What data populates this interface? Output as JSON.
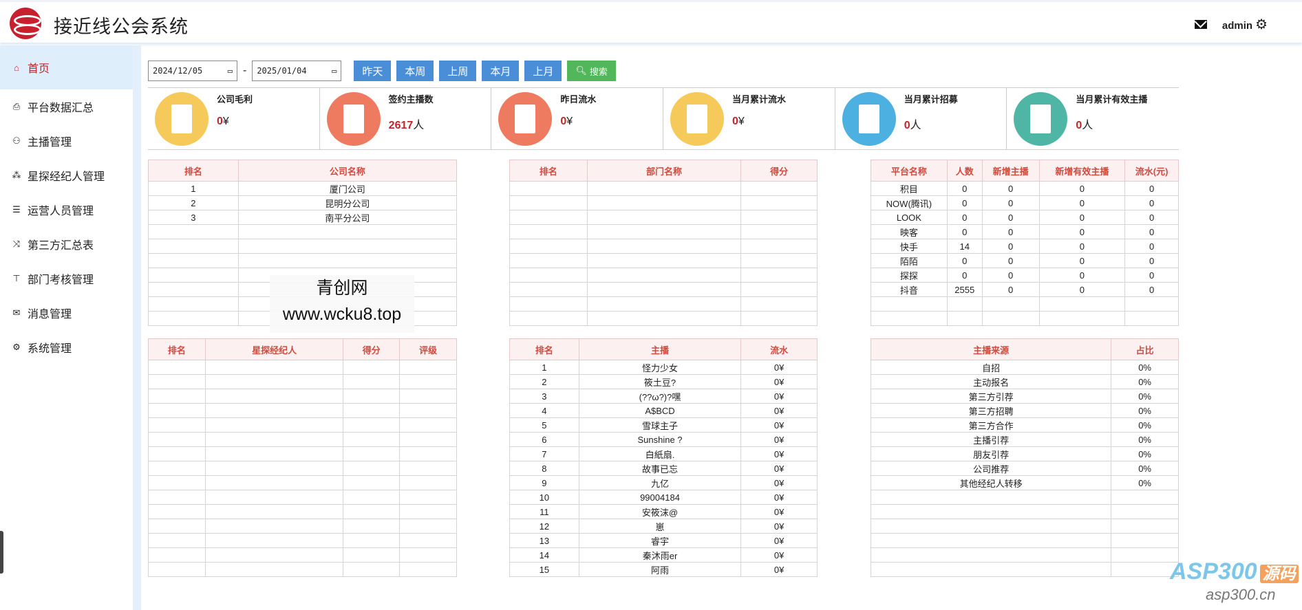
{
  "header": {
    "title": "接近线公会系统",
    "user": "admin",
    "icons": {
      "logo": "logo-icon",
      "mail": "mail-icon",
      "settings": "gear-icon"
    }
  },
  "sidebar": {
    "items": [
      {
        "label": "首页",
        "icon": "home-icon",
        "glyph": "⌂",
        "active": true
      },
      {
        "label": "平台数据汇总",
        "icon": "inbox-icon",
        "glyph": "⎙"
      },
      {
        "label": "主播管理",
        "icon": "users-icon",
        "glyph": "⚇"
      },
      {
        "label": "星探经纪人管理",
        "icon": "sitemap-icon",
        "glyph": "⁂"
      },
      {
        "label": "运营人员管理",
        "icon": "list-icon",
        "glyph": "☰"
      },
      {
        "label": "第三方汇总表",
        "icon": "shuffle-icon",
        "glyph": "⤨"
      },
      {
        "label": "部门考核管理",
        "icon": "tree-icon",
        "glyph": "⊤"
      },
      {
        "label": "消息管理",
        "icon": "mail-icon",
        "glyph": "✉"
      },
      {
        "label": "系统管理",
        "icon": "gear-icon",
        "glyph": "⚙"
      }
    ]
  },
  "filter": {
    "start_date": "2024/12/05",
    "end_date": "2025/01/04",
    "separator": "-",
    "buttons": [
      "昨天",
      "本周",
      "上周",
      "本月",
      "上月"
    ],
    "search": "搜索"
  },
  "cards": [
    {
      "title": "公司毛利",
      "value": "0",
      "unit": "¥",
      "color": "#f6c95b",
      "icon": "report-search-icon"
    },
    {
      "title": "签约主播数",
      "value": "2617",
      "unit": "人",
      "color": "#ee7b5f",
      "icon": "pie-chart-icon"
    },
    {
      "title": "昨日流水",
      "value": "0",
      "unit": "¥",
      "color": "#ee7b5f",
      "icon": "bar-chart-icon"
    },
    {
      "title": "当月累计流水",
      "value": "0",
      "unit": "¥",
      "color": "#f6c95b",
      "icon": "refresh-doc-icon"
    },
    {
      "title": "当月累计招募",
      "value": "0",
      "unit": "人",
      "color": "#4cb1e0",
      "icon": "clock-doc-icon"
    },
    {
      "title": "当月累计有效主播",
      "value": "0",
      "unit": "人",
      "color": "#4fb6a6",
      "icon": "tablet-trend-icon"
    }
  ],
  "tables": {
    "company": {
      "headers": [
        "排名",
        "公司名称"
      ],
      "rows": [
        [
          "1",
          "厦门公司"
        ],
        [
          "2",
          "昆明分公司"
        ],
        [
          "3",
          "南平分公司"
        ]
      ],
      "total_rows": 10
    },
    "department": {
      "headers": [
        "排名",
        "部门名称",
        "得分"
      ],
      "rows": [],
      "total_rows": 10
    },
    "platform": {
      "headers": [
        "平台名称",
        "人数",
        "新增主播",
        "新增有效主播",
        "流水(元)"
      ],
      "rows": [
        [
          "积目",
          "0",
          "0",
          "0",
          "0"
        ],
        [
          "NOW(腾讯)",
          "0",
          "0",
          "0",
          "0"
        ],
        [
          "LOOK",
          "0",
          "0",
          "0",
          "0"
        ],
        [
          "映客",
          "0",
          "0",
          "0",
          "0"
        ],
        [
          "快手",
          "14",
          "0",
          "0",
          "0"
        ],
        [
          "陌陌",
          "0",
          "0",
          "0",
          "0"
        ],
        [
          "探探",
          "0",
          "0",
          "0",
          "0"
        ],
        [
          "抖音",
          "2555",
          "0",
          "0",
          "0"
        ]
      ],
      "total_rows": 10
    },
    "scout": {
      "headers": [
        "排名",
        "星探经纪人",
        "得分",
        "评级"
      ],
      "rows": [],
      "total_rows": 15
    },
    "streamer": {
      "headers": [
        "排名",
        "主播",
        "流水"
      ],
      "rows": [
        [
          "1",
          "怪力少女",
          "0¥"
        ],
        [
          "2",
          "筱土豆?",
          "0¥"
        ],
        [
          "3",
          "(??ω?)?嘿",
          "0¥"
        ],
        [
          "4",
          "A$BCD",
          "0¥"
        ],
        [
          "5",
          "雪球主子",
          "0¥"
        ],
        [
          "6",
          "Sunshine ?",
          "0¥"
        ],
        [
          "7",
          "白紙扇.",
          "0¥"
        ],
        [
          "8",
          "故事已忘",
          "0¥"
        ],
        [
          "9",
          "九亿",
          "0¥"
        ],
        [
          "10",
          "99004184",
          "0¥"
        ],
        [
          "11",
          "安筱沫@",
          "0¥"
        ],
        [
          "12",
          "崽",
          "0¥"
        ],
        [
          "13",
          "睿宇",
          "0¥"
        ],
        [
          "14",
          "秦沐雨er",
          "0¥"
        ],
        [
          "15",
          "阿雨",
          "0¥"
        ]
      ],
      "total_rows": 15
    },
    "source": {
      "headers": [
        "主播来源",
        "占比"
      ],
      "rows": [
        [
          "自招",
          "0%"
        ],
        [
          "主动报名",
          "0%"
        ],
        [
          "第三方引荐",
          "0%"
        ],
        [
          "第三方招聘",
          "0%"
        ],
        [
          "第三方合作",
          "0%"
        ],
        [
          "主播引荐",
          "0%"
        ],
        [
          "朋友引荐",
          "0%"
        ],
        [
          "公司推荐",
          "0%"
        ],
        [
          "其他经纪人转移",
          "0%"
        ]
      ],
      "total_rows": 15
    }
  },
  "watermark": {
    "line1": "青创网",
    "line2": "www.wcku8.top"
  },
  "corner_logo": {
    "brand": "ASP300",
    "tag": "源码",
    "site": "asp300.cn"
  }
}
